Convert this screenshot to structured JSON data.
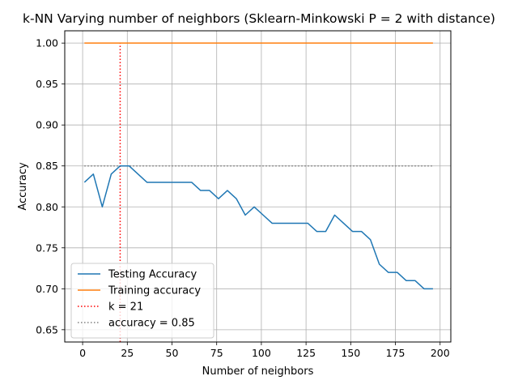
{
  "chart_data": {
    "type": "line",
    "title": "k-NN Varying number of neighbors (Sklearn-Minkowski P = 2 with distance)",
    "xlabel": "Number of neighbors",
    "ylabel": "Accuracy",
    "xlim": [
      -10,
      206
    ],
    "ylim": [
      0.635,
      1.015
    ],
    "xticks": [
      0,
      25,
      50,
      75,
      100,
      125,
      150,
      175,
      200
    ],
    "yticks": [
      0.65,
      0.7,
      0.75,
      0.8,
      0.85,
      0.9,
      0.95,
      1.0
    ],
    "xtick_labels": [
      "0",
      "25",
      "50",
      "75",
      "100",
      "125",
      "150",
      "175",
      "200"
    ],
    "ytick_labels": [
      "0.65",
      "0.70",
      "0.75",
      "0.80",
      "0.85",
      "0.90",
      "0.95",
      "1.00"
    ],
    "grid": true,
    "legend_position": "lower-left",
    "series": [
      {
        "name": "Testing Accuracy",
        "color": "#1f77b4",
        "style": "solid",
        "x": [
          1,
          6,
          11,
          16,
          21,
          26,
          31,
          36,
          41,
          46,
          51,
          56,
          61,
          66,
          71,
          76,
          81,
          86,
          91,
          96,
          101,
          106,
          111,
          116,
          121,
          126,
          131,
          136,
          141,
          146,
          151,
          156,
          161,
          166,
          171,
          176,
          181,
          186,
          191,
          196
        ],
        "y": [
          0.83,
          0.84,
          0.8,
          0.84,
          0.85,
          0.85,
          0.84,
          0.83,
          0.83,
          0.83,
          0.83,
          0.83,
          0.83,
          0.82,
          0.82,
          0.81,
          0.82,
          0.81,
          0.79,
          0.8,
          0.79,
          0.78,
          0.78,
          0.78,
          0.78,
          0.78,
          0.77,
          0.77,
          0.79,
          0.78,
          0.77,
          0.77,
          0.76,
          0.73,
          0.72,
          0.72,
          0.71,
          0.71,
          0.7,
          0.7
        ]
      },
      {
        "name": "Training accuracy",
        "color": "#ff7f0e",
        "style": "solid",
        "x": [
          1,
          196
        ],
        "y": [
          1.0,
          1.0
        ]
      }
    ],
    "reference_lines": [
      {
        "name": "k = 21",
        "orientation": "vertical",
        "value": 21,
        "from": 0.635,
        "to": 1.0,
        "color": "#ff0000",
        "style": "dotted"
      },
      {
        "name": "accuracy = 0.85",
        "orientation": "horizontal",
        "value": 0.85,
        "from": 1,
        "to": 196,
        "color": "#808080",
        "style": "dotted"
      }
    ],
    "legend": [
      {
        "label": "Testing Accuracy",
        "color": "#1f77b4",
        "style": "solid"
      },
      {
        "label": "Training accuracy",
        "color": "#ff7f0e",
        "style": "solid"
      },
      {
        "label": "k = 21",
        "color": "#ff0000",
        "style": "dotted"
      },
      {
        "label": "accuracy = 0.85",
        "color": "#808080",
        "style": "dotted"
      }
    ]
  }
}
